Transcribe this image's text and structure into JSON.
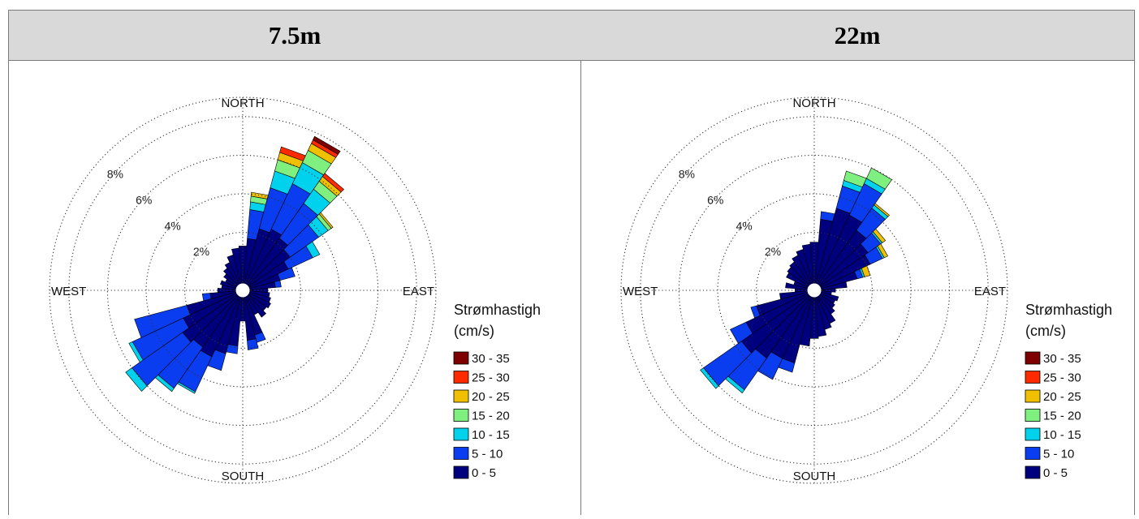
{
  "columns": [
    {
      "header": "7.5m"
    },
    {
      "header": "22m"
    }
  ],
  "chart_data": [
    {
      "type": "polar-bar",
      "stacked": true,
      "title": "7.5m",
      "directions": [
        "NORTH",
        "EAST",
        "SOUTH",
        "WEST"
      ],
      "radial_ticks": [
        "2%",
        "4%",
        "6%",
        "8%"
      ],
      "radial_max_pct": 10,
      "legend_title": [
        "Strømhastigh",
        "(cm/s)"
      ],
      "speed_bins": [
        "0 - 5",
        "5 - 10",
        "10 - 15",
        "15 - 20",
        "20 - 25",
        "25 - 30",
        "30 - 35"
      ],
      "colors": [
        "#00007f",
        "#0a3cf0",
        "#00d2ee",
        "#7ff07f",
        "#f0c000",
        "#ff2a00",
        "#7f0000"
      ],
      "sector_width_deg": 10,
      "sectors": [
        {
          "dir": 0,
          "values": [
            2.3,
            0.0,
            0.0,
            0.0,
            0.0,
            0.0,
            0.0
          ]
        },
        {
          "dir": 10,
          "values": [
            2.7,
            1.5,
            0.4,
            0.3,
            0.2,
            0.0,
            0.0
          ]
        },
        {
          "dir": 20,
          "values": [
            3.3,
            2.2,
            0.9,
            0.6,
            0.4,
            0.3,
            0.0
          ]
        },
        {
          "dir": 30,
          "values": [
            3.5,
            2.6,
            1.2,
            0.7,
            0.4,
            0.2,
            0.2
          ]
        },
        {
          "dir": 40,
          "values": [
            3.3,
            2.2,
            0.9,
            0.5,
            0.3,
            0.2,
            0.0
          ]
        },
        {
          "dir": 50,
          "values": [
            3.0,
            1.8,
            0.6,
            0.2,
            0.1,
            0.0,
            0.0
          ]
        },
        {
          "dir": 60,
          "values": [
            2.6,
            1.4,
            0.4,
            0.0,
            0.0,
            0.0,
            0.0
          ]
        },
        {
          "dir": 70,
          "values": [
            2.0,
            0.8,
            0.0,
            0.0,
            0.0,
            0.0,
            0.0
          ]
        },
        {
          "dir": 80,
          "values": [
            1.7,
            0.3,
            0.0,
            0.0,
            0.0,
            0.0,
            0.0
          ]
        },
        {
          "dir": 90,
          "values": [
            1.3,
            0.0,
            0.0,
            0.0,
            0.0,
            0.0,
            0.0
          ]
        },
        {
          "dir": 100,
          "values": [
            1.4,
            0.0,
            0.0,
            0.0,
            0.0,
            0.0,
            0.0
          ]
        },
        {
          "dir": 110,
          "values": [
            1.5,
            0.0,
            0.0,
            0.0,
            0.0,
            0.0,
            0.0
          ]
        },
        {
          "dir": 120,
          "values": [
            1.6,
            0.0,
            0.0,
            0.0,
            0.0,
            0.0,
            0.0
          ]
        },
        {
          "dir": 130,
          "values": [
            1.5,
            0.0,
            0.0,
            0.0,
            0.0,
            0.0,
            0.0
          ]
        },
        {
          "dir": 140,
          "values": [
            1.7,
            0.0,
            0.0,
            0.0,
            0.0,
            0.0,
            0.0
          ]
        },
        {
          "dir": 150,
          "values": [
            1.4,
            0.0,
            0.0,
            0.0,
            0.0,
            0.0,
            0.0
          ]
        },
        {
          "dir": 160,
          "values": [
            2.4,
            0.4,
            0.0,
            0.0,
            0.0,
            0.0,
            0.0
          ]
        },
        {
          "dir": 170,
          "values": [
            2.6,
            0.5,
            0.0,
            0.0,
            0.0,
            0.0,
            0.0
          ]
        },
        {
          "dir": 180,
          "values": [
            1.6,
            0.0,
            0.0,
            0.0,
            0.0,
            0.0,
            0.0
          ]
        },
        {
          "dir": 190,
          "values": [
            2.9,
            0.4,
            0.0,
            0.0,
            0.0,
            0.0,
            0.0
          ]
        },
        {
          "dir": 200,
          "values": [
            3.4,
            0.9,
            0.0,
            0.0,
            0.0,
            0.0,
            0.0
          ]
        },
        {
          "dir": 210,
          "values": [
            3.8,
            2.0,
            0.1,
            0.0,
            0.0,
            0.0,
            0.0
          ]
        },
        {
          "dir": 220,
          "values": [
            3.6,
            2.6,
            0.2,
            0.0,
            0.0,
            0.0,
            0.0
          ]
        },
        {
          "dir": 230,
          "values": [
            3.8,
            3.2,
            0.4,
            0.0,
            0.0,
            0.0,
            0.0
          ]
        },
        {
          "dir": 240,
          "values": [
            3.4,
            2.9,
            0.2,
            0.0,
            0.0,
            0.0,
            0.0
          ]
        },
        {
          "dir": 250,
          "values": [
            3.0,
            2.8,
            0.0,
            0.0,
            0.0,
            0.0,
            0.0
          ]
        },
        {
          "dir": 260,
          "values": [
            1.7,
            0.4,
            0.0,
            0.0,
            0.0,
            0.0,
            0.0
          ]
        },
        {
          "dir": 270,
          "values": [
            1.3,
            0.0,
            0.0,
            0.0,
            0.0,
            0.0,
            0.0
          ]
        },
        {
          "dir": 280,
          "values": [
            1.1,
            0.0,
            0.0,
            0.0,
            0.0,
            0.0,
            0.0
          ]
        },
        {
          "dir": 290,
          "values": [
            1.2,
            0.0,
            0.0,
            0.0,
            0.0,
            0.0,
            0.0
          ]
        },
        {
          "dir": 300,
          "values": [
            1.0,
            0.0,
            0.0,
            0.0,
            0.0,
            0.0,
            0.0
          ]
        },
        {
          "dir": 310,
          "values": [
            1.2,
            0.0,
            0.0,
            0.0,
            0.0,
            0.0,
            0.0
          ]
        },
        {
          "dir": 320,
          "values": [
            1.4,
            0.0,
            0.0,
            0.0,
            0.0,
            0.0,
            0.0
          ]
        },
        {
          "dir": 330,
          "values": [
            1.6,
            0.0,
            0.0,
            0.0,
            0.0,
            0.0,
            0.0
          ]
        },
        {
          "dir": 340,
          "values": [
            1.9,
            0.0,
            0.0,
            0.0,
            0.0,
            0.0,
            0.0
          ]
        },
        {
          "dir": 350,
          "values": [
            2.2,
            0.0,
            0.0,
            0.0,
            0.0,
            0.0,
            0.0
          ]
        }
      ]
    },
    {
      "type": "polar-bar",
      "stacked": true,
      "title": "22m",
      "directions": [
        "NORTH",
        "EAST",
        "SOUTH",
        "WEST"
      ],
      "radial_ticks": [
        "2%",
        "4%",
        "6%",
        "8%"
      ],
      "radial_max_pct": 10,
      "legend_title": [
        "Strømhastigh",
        "(cm/s)"
      ],
      "speed_bins": [
        "0 - 5",
        "5 - 10",
        "10 - 15",
        "15 - 20",
        "20 - 25",
        "25 - 30",
        "30 - 35"
      ],
      "colors": [
        "#00007f",
        "#0a3cf0",
        "#00d2ee",
        "#7ff07f",
        "#f0c000",
        "#ff2a00",
        "#7f0000"
      ],
      "sector_width_deg": 10,
      "sectors": [
        {
          "dir": 0,
          "values": [
            2.5,
            0.0,
            0.0,
            0.0,
            0.0,
            0.0,
            0.0
          ]
        },
        {
          "dir": 10,
          "values": [
            3.7,
            0.4,
            0.0,
            0.0,
            0.0,
            0.0,
            0.0
          ]
        },
        {
          "dir": 20,
          "values": [
            4.4,
            1.2,
            0.3,
            0.5,
            0.0,
            0.0,
            0.0
          ]
        },
        {
          "dir": 30,
          "values": [
            4.3,
            1.8,
            0.3,
            0.6,
            0.0,
            0.0,
            0.0
          ]
        },
        {
          "dir": 40,
          "values": [
            3.8,
            1.4,
            0.2,
            0.0,
            0.1,
            0.0,
            0.0
          ]
        },
        {
          "dir": 50,
          "values": [
            3.4,
            0.8,
            0.1,
            0.0,
            0.2,
            0.0,
            0.0
          ]
        },
        {
          "dir": 60,
          "values": [
            3.2,
            0.7,
            0.1,
            0.0,
            0.2,
            0.0,
            0.0
          ]
        },
        {
          "dir": 70,
          "values": [
            2.3,
            0.3,
            0.1,
            0.0,
            0.3,
            0.0,
            0.0
          ]
        },
        {
          "dir": 80,
          "values": [
            1.7,
            0.0,
            0.0,
            0.0,
            0.0,
            0.0,
            0.0
          ]
        },
        {
          "dir": 90,
          "values": [
            1.1,
            0.0,
            0.0,
            0.0,
            0.0,
            0.0,
            0.0
          ]
        },
        {
          "dir": 100,
          "values": [
            0.9,
            0.0,
            0.0,
            0.0,
            0.0,
            0.0,
            0.0
          ]
        },
        {
          "dir": 110,
          "values": [
            1.3,
            0.0,
            0.0,
            0.0,
            0.0,
            0.0,
            0.0
          ]
        },
        {
          "dir": 120,
          "values": [
            1.2,
            0.0,
            0.0,
            0.0,
            0.0,
            0.0,
            0.0
          ]
        },
        {
          "dir": 130,
          "values": [
            1.3,
            0.0,
            0.0,
            0.0,
            0.0,
            0.0,
            0.0
          ]
        },
        {
          "dir": 140,
          "values": [
            1.5,
            0.0,
            0.0,
            0.0,
            0.0,
            0.0,
            0.0
          ]
        },
        {
          "dir": 150,
          "values": [
            1.9,
            0.0,
            0.0,
            0.0,
            0.0,
            0.0,
            0.0
          ]
        },
        {
          "dir": 160,
          "values": [
            2.1,
            0.0,
            0.0,
            0.0,
            0.0,
            0.0,
            0.0
          ]
        },
        {
          "dir": 170,
          "values": [
            2.4,
            0.0,
            0.0,
            0.0,
            0.0,
            0.0,
            0.0
          ]
        },
        {
          "dir": 180,
          "values": [
            2.5,
            0.0,
            0.0,
            0.0,
            0.0,
            0.0,
            0.0
          ]
        },
        {
          "dir": 190,
          "values": [
            2.9,
            0.0,
            0.0,
            0.0,
            0.0,
            0.0,
            0.0
          ]
        },
        {
          "dir": 200,
          "values": [
            3.9,
            0.5,
            0.0,
            0.0,
            0.0,
            0.0,
            0.0
          ]
        },
        {
          "dir": 210,
          "values": [
            3.9,
            1.2,
            0.0,
            0.0,
            0.0,
            0.0,
            0.0
          ]
        },
        {
          "dir": 220,
          "values": [
            4.3,
            2.0,
            0.2,
            0.0,
            0.0,
            0.0,
            0.0
          ]
        },
        {
          "dir": 230,
          "values": [
            4.6,
            2.4,
            0.2,
            0.0,
            0.0,
            0.0,
            0.0
          ]
        },
        {
          "dir": 240,
          "values": [
            3.9,
            0.9,
            0.0,
            0.0,
            0.0,
            0.0,
            0.0
          ]
        },
        {
          "dir": 250,
          "values": [
            3.1,
            0.3,
            0.0,
            0.0,
            0.0,
            0.0,
            0.0
          ]
        },
        {
          "dir": 260,
          "values": [
            1.8,
            0.0,
            0.0,
            0.0,
            0.0,
            0.0,
            0.0
          ]
        },
        {
          "dir": 270,
          "values": [
            1.0,
            0.0,
            0.0,
            0.0,
            0.0,
            0.0,
            0.0
          ]
        },
        {
          "dir": 280,
          "values": [
            1.5,
            0.0,
            0.0,
            0.0,
            0.0,
            0.0,
            0.0
          ]
        },
        {
          "dir": 290,
          "values": [
            1.1,
            0.0,
            0.0,
            0.0,
            0.0,
            0.0,
            0.0
          ]
        },
        {
          "dir": 300,
          "values": [
            1.6,
            0.0,
            0.0,
            0.0,
            0.0,
            0.0,
            0.0
          ]
        },
        {
          "dir": 310,
          "values": [
            1.7,
            0.0,
            0.0,
            0.0,
            0.0,
            0.0,
            0.0
          ]
        },
        {
          "dir": 320,
          "values": [
            1.8,
            0.0,
            0.0,
            0.0,
            0.0,
            0.0,
            0.0
          ]
        },
        {
          "dir": 330,
          "values": [
            2.0,
            0.0,
            0.0,
            0.0,
            0.0,
            0.0,
            0.0
          ]
        },
        {
          "dir": 340,
          "values": [
            2.2,
            0.0,
            0.0,
            0.0,
            0.0,
            0.0,
            0.0
          ]
        },
        {
          "dir": 350,
          "values": [
            2.4,
            0.0,
            0.0,
            0.0,
            0.0,
            0.0,
            0.0
          ]
        }
      ]
    }
  ]
}
